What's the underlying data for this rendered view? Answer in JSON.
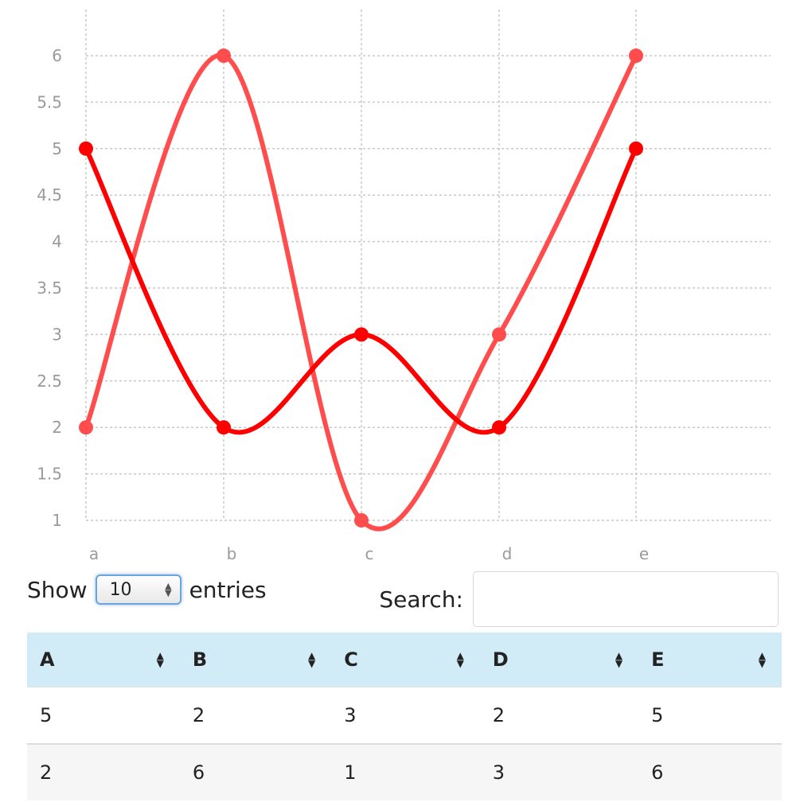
{
  "chart_data": {
    "type": "line",
    "categories": [
      "a",
      "b",
      "c",
      "d",
      "e"
    ],
    "series": [
      {
        "values": [
          5,
          2,
          3,
          2,
          5
        ],
        "color": "#ff0000"
      },
      {
        "values": [
          2,
          6,
          1,
          3,
          6
        ],
        "color": "#ff4d4d"
      }
    ],
    "ylim": [
      1,
      6
    ],
    "yticks": [
      "1",
      "1.5",
      "2",
      "2.5",
      "3",
      "3.5",
      "4",
      "4.5",
      "5",
      "5.5",
      "6"
    ],
    "grid": true,
    "curve": "smooth"
  },
  "controls": {
    "show_label": "Show",
    "page_length": "10",
    "entries_label": "entries",
    "search_label": "Search:",
    "search_value": ""
  },
  "table": {
    "columns": [
      "A",
      "B",
      "C",
      "D",
      "E"
    ],
    "rows": [
      [
        "5",
        "2",
        "3",
        "2",
        "5"
      ],
      [
        "2",
        "6",
        "1",
        "3",
        "6"
      ]
    ]
  }
}
